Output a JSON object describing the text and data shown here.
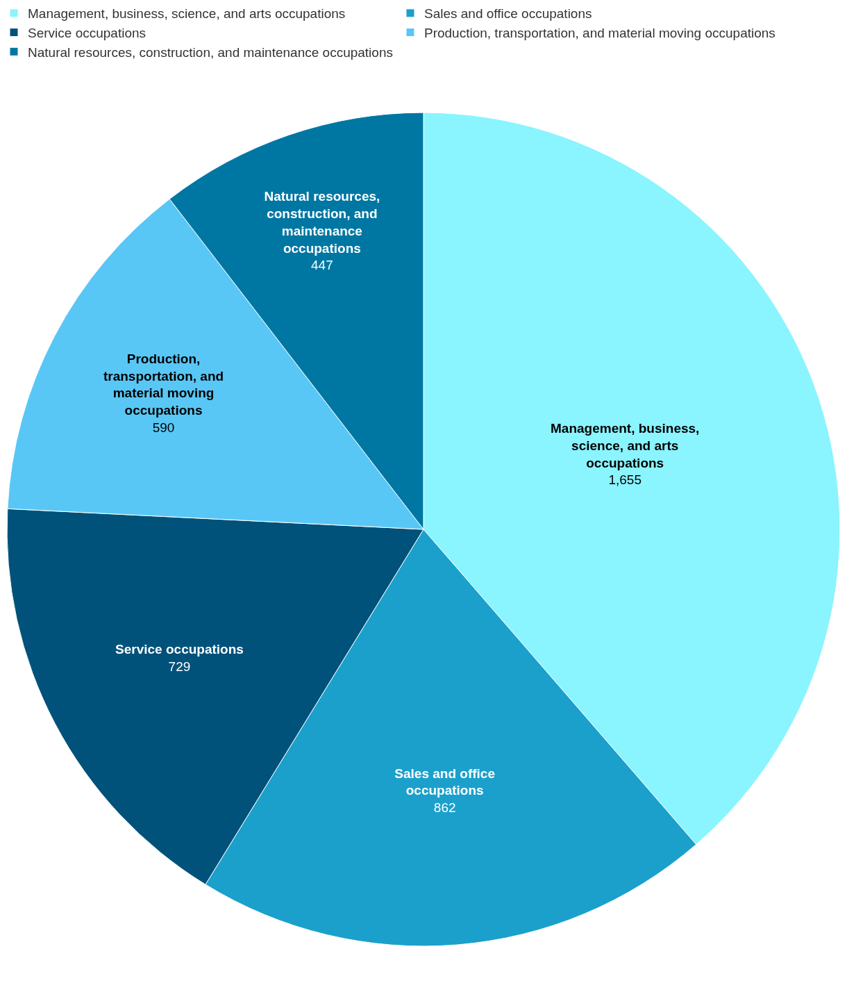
{
  "chart_data": {
    "type": "pie",
    "categories": [
      "Management, business, science, and arts occupations",
      "Sales and office occupations",
      "Service occupations",
      "Production, transportation, and material moving occupations",
      "Natural resources, construction, and maintenance occupations"
    ],
    "values": [
      1655,
      862,
      729,
      590,
      447
    ],
    "colors": [
      "#8af4ff",
      "#1ba0cc",
      "#00527a",
      "#59c7f5",
      "#0077a3"
    ],
    "value_labels": [
      "1,655",
      "862",
      "729",
      "590",
      "447"
    ],
    "legend": "top left"
  }
}
